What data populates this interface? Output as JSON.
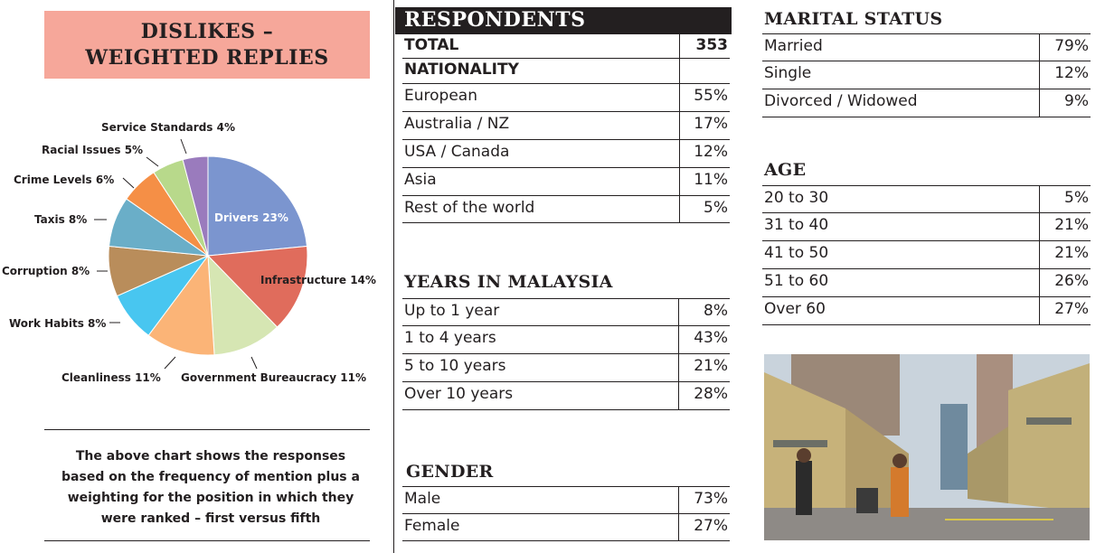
{
  "left": {
    "title_line1": "DISLIKES –",
    "title_line2": "WEIGHTED REPLIES",
    "note": [
      "The above chart shows the responses",
      "based on the frequency of mention plus a",
      "weighting for the position in which they",
      "were ranked – first versus fifth"
    ]
  },
  "chart_data": {
    "type": "pie",
    "title": "DISLIKES – WEIGHTED REPLIES",
    "slices": [
      {
        "label": "Drivers 23%",
        "category": "Drivers",
        "value": 23,
        "color": "#7b95cf"
      },
      {
        "label": "Infrastructure 14%",
        "category": "Infrastructure",
        "value": 14,
        "color": "#e06c5c"
      },
      {
        "label": "Government Bureaucracy 11%",
        "category": "Government Bureaucracy",
        "value": 11,
        "color": "#d6e6b3"
      },
      {
        "label": "Cleanliness 11%",
        "category": "Cleanliness",
        "value": 11,
        "color": "#fbb477"
      },
      {
        "label": "Work Habits 8%",
        "category": "Work Habits",
        "value": 8,
        "color": "#48c6f0"
      },
      {
        "label": "Corruption 8%",
        "category": "Corruption",
        "value": 8,
        "color": "#b98d5b"
      },
      {
        "label": "Taxis 8%",
        "category": "Taxis",
        "value": 8,
        "color": "#6aaec8"
      },
      {
        "label": "Crime Levels 6%",
        "category": "Crime Levels",
        "value": 6,
        "color": "#f58f46"
      },
      {
        "label": "Racial Issues 5%",
        "category": "Racial Issues",
        "value": 5,
        "color": "#b8d98b"
      },
      {
        "label": "Service Standards 4%",
        "category": "Service Standards",
        "value": 4,
        "color": "#9a7bbd"
      }
    ]
  },
  "respondents": {
    "heading": "RESPONDENTS",
    "total_label": "TOTAL",
    "total_value": "353",
    "nationality_label": "NATIONALITY",
    "nationality": [
      {
        "label": "European",
        "value": "55%"
      },
      {
        "label": "Australia / NZ",
        "value": "17%"
      },
      {
        "label": "USA / Canada",
        "value": "12%"
      },
      {
        "label": "Asia",
        "value": "11%"
      },
      {
        "label": "Rest of the world",
        "value": "5%"
      }
    ]
  },
  "years": {
    "heading": "YEARS IN MALAYSIA",
    "rows": [
      {
        "label": "Up to 1 year",
        "value": "8%"
      },
      {
        "label": "1 to 4 years",
        "value": "43%"
      },
      {
        "label": "5 to 10 years",
        "value": "21%"
      },
      {
        "label": "Over 10 years",
        "value": "28%"
      }
    ]
  },
  "gender": {
    "heading": "GENDER",
    "rows": [
      {
        "label": "Male",
        "value": "73%"
      },
      {
        "label": "Female",
        "value": "27%"
      }
    ]
  },
  "marital": {
    "heading": "MARITAL STATUS",
    "rows": [
      {
        "label": "Married",
        "value": "79%"
      },
      {
        "label": "Single",
        "value": "12%"
      },
      {
        "label": "Divorced / Widowed",
        "value": "9%"
      }
    ]
  },
  "age": {
    "heading": "AGE",
    "rows": [
      {
        "label": "20 to 30",
        "value": "5%"
      },
      {
        "label": "31 to 40",
        "value": "21%"
      },
      {
        "label": "41 to 50",
        "value": "21%"
      },
      {
        "label": "51 to 60",
        "value": "26%"
      },
      {
        "label": "Over 60",
        "value": "27%"
      }
    ]
  }
}
